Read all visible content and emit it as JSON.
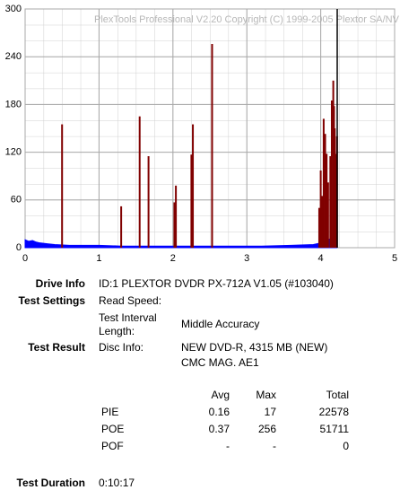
{
  "chart_data": {
    "type": "bar",
    "title": "PlexTools Professional V2.20 Copyright (C) 1999-2005 Plextor SA/NV",
    "xlim": [
      0,
      5
    ],
    "xticks": [
      0,
      1,
      2,
      3,
      4,
      5
    ],
    "ylim": [
      0,
      300
    ],
    "yticks": [
      0,
      60,
      120,
      180,
      240,
      300
    ],
    "grid": true,
    "series": [
      {
        "color": "#800000",
        "x": [
          0.5,
          1.3,
          1.55,
          1.67,
          2.02,
          2.04,
          2.25,
          2.27,
          2.53,
          3.98,
          4.0,
          4.02,
          4.04,
          4.06,
          4.08,
          4.1,
          4.13,
          4.15,
          4.17,
          4.18,
          4.19,
          4.2,
          4.22
        ],
        "values": [
          155,
          52,
          165,
          115,
          57,
          78,
          117,
          155,
          256,
          50,
          97,
          65,
          162,
          143,
          118,
          82,
          115,
          185,
          210,
          178,
          150,
          118,
          140
        ]
      },
      {
        "color": "#0000ff",
        "x": [
          0,
          0.05,
          0.1,
          0.15,
          0.2,
          0.3,
          0.4,
          0.6,
          0.8,
          1.0,
          1.3,
          1.6,
          2.0,
          2.4,
          2.8,
          3.2,
          3.6,
          3.9,
          4.0,
          4.05,
          4.1,
          4.15,
          4.2,
          4.22
        ],
        "values": [
          10,
          8,
          9,
          7,
          6,
          5,
          4,
          3,
          3,
          3,
          2,
          2,
          2,
          2,
          2,
          2,
          3,
          4,
          6,
          8,
          10,
          12,
          14,
          12
        ]
      }
    ]
  },
  "info": {
    "drive_info_label": "Drive Info",
    "drive_info": "ID:1 PLEXTOR DVDR PX-712A V1.05 (#103040)",
    "test_settings_label": "Test Settings",
    "read_speed_label": "Read Speed:",
    "interval_label_1": "Test Interval",
    "interval_label_2": "Length:",
    "interval": "Middle Accuracy",
    "test_result_label": "Test Result",
    "disc_info_label": "Disc Info:",
    "disc_info_1": "NEW DVD-R, 4315 MB (NEW)",
    "disc_info_2": "CMC MAG. AE1",
    "duration_label": "Test Duration",
    "duration": "0:10:17"
  },
  "stats": {
    "header": [
      "Avg",
      "Max",
      "Total"
    ],
    "rows": [
      [
        "PIE",
        "0.16",
        "17",
        "22578"
      ],
      [
        "POE",
        "0.37",
        "256",
        "51711"
      ],
      [
        "POF",
        "-",
        "-",
        "0"
      ]
    ]
  }
}
